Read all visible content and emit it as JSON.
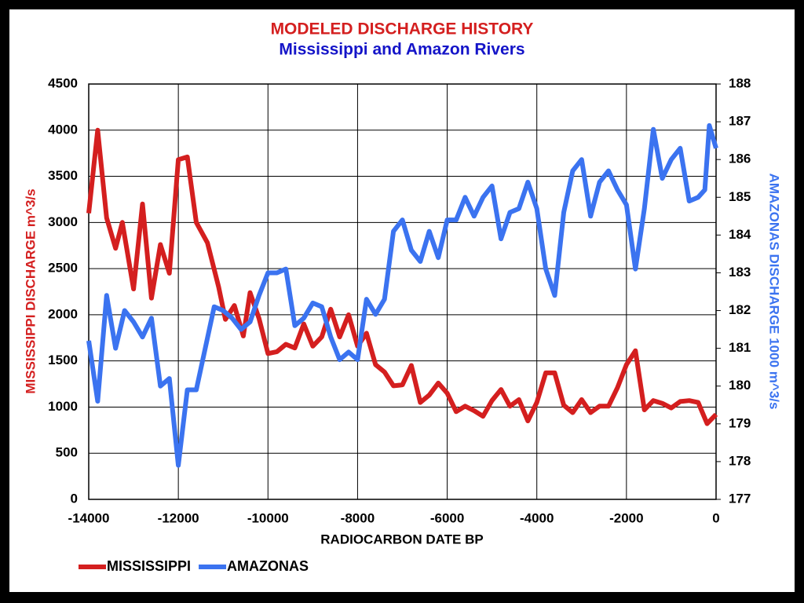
{
  "chart_data": {
    "type": "line",
    "title": "MODELED DISCHARGE HISTORY",
    "subtitle": "Mississippi and Amazon Rivers",
    "xlabel": "RADIOCARBON DATE BP",
    "ylabel": "MISSISSIPPI DISCHARGE m^3/s",
    "y2label": "AMAZONAS DISCHARGE 1000 m^3/s",
    "xlim": [
      -14000,
      0
    ],
    "xticks": [
      -14000,
      -12000,
      -10000,
      -8000,
      -6000,
      -4000,
      -2000,
      0
    ],
    "ylim": [
      0,
      4500
    ],
    "yticks": [
      0,
      500,
      1000,
      1500,
      2000,
      2500,
      3000,
      3500,
      4000,
      4500
    ],
    "y2lim": [
      177,
      188
    ],
    "y2ticks": [
      177,
      178,
      179,
      180,
      181,
      182,
      183,
      184,
      185,
      186,
      187,
      188
    ],
    "grid": true,
    "legend": "bottom-left",
    "series": [
      {
        "name": "MISSISSIPPI",
        "color": "#d41f1f",
        "x": [
          -14000,
          -13800,
          -13600,
          -13400,
          -13250,
          -13000,
          -12800,
          -12600,
          -12400,
          -12200,
          -12000,
          -11800,
          -11600,
          -11350,
          -11100,
          -10950,
          -10750,
          -10550,
          -10400,
          -10200,
          -10000,
          -9800,
          -9600,
          -9400,
          -9200,
          -9000,
          -8800,
          -8600,
          -8400,
          -8200,
          -8000,
          -7800,
          -7600,
          -7400,
          -7200,
          -7000,
          -6800,
          -6600,
          -6400,
          -6200,
          -6000,
          -5800,
          -5600,
          -5400,
          -5200,
          -5000,
          -4800,
          -4600,
          -4400,
          -4200,
          -4000,
          -3800,
          -3600,
          -3400,
          -3200,
          -3000,
          -2800,
          -2600,
          -2400,
          -2200,
          -2000,
          -1800,
          -1600,
          -1400,
          -1200,
          -1000,
          -800,
          -600,
          -400,
          -200,
          0
        ],
        "values": [
          3100,
          4000,
          3050,
          2720,
          3000,
          2280,
          3200,
          2180,
          2760,
          2450,
          3680,
          3710,
          3000,
          2780,
          2300,
          1950,
          2100,
          1770,
          2240,
          1960,
          1580,
          1600,
          1680,
          1640,
          1900,
          1660,
          1760,
          2060,
          1760,
          2000,
          1660,
          1800,
          1460,
          1380,
          1230,
          1240,
          1450,
          1050,
          1130,
          1260,
          1150,
          950,
          1010,
          960,
          900,
          1070,
          1190,
          1010,
          1080,
          850,
          1050,
          1370,
          1370,
          1020,
          940,
          1080,
          940,
          1010,
          1010,
          1210,
          1460,
          1610,
          970,
          1070,
          1040,
          990,
          1060,
          1070,
          1050,
          820,
          920
        ]
      },
      {
        "name": "AMAZONAS",
        "color": "#3b73f0",
        "axis": "y2",
        "x": [
          -14000,
          -13800,
          -13600,
          -13400,
          -13200,
          -13000,
          -12800,
          -12600,
          -12400,
          -12200,
          -12000,
          -11800,
          -11600,
          -11400,
          -11200,
          -11000,
          -10800,
          -10600,
          -10400,
          -10200,
          -10000,
          -9800,
          -9600,
          -9400,
          -9200,
          -9000,
          -8800,
          -8600,
          -8400,
          -8200,
          -8000,
          -7800,
          -7600,
          -7400,
          -7200,
          -7000,
          -6800,
          -6600,
          -6400,
          -6200,
          -6000,
          -5800,
          -5600,
          -5400,
          -5200,
          -5000,
          -4800,
          -4600,
          -4400,
          -4200,
          -4000,
          -3800,
          -3600,
          -3400,
          -3200,
          -3000,
          -2800,
          -2600,
          -2400,
          -2200,
          -2000,
          -1800,
          -1600,
          -1400,
          -1200,
          -1000,
          -800,
          -600,
          -400,
          -250,
          -150,
          0
        ],
        "values": [
          181.2,
          179.6,
          182.4,
          181.0,
          182.0,
          181.7,
          181.3,
          181.8,
          180.0,
          180.2,
          177.9,
          179.9,
          179.9,
          181.0,
          182.1,
          182.0,
          181.8,
          181.5,
          181.7,
          182.4,
          183.0,
          183.0,
          183.1,
          181.6,
          181.8,
          182.2,
          182.1,
          181.3,
          180.7,
          180.9,
          180.7,
          182.3,
          181.9,
          182.3,
          184.1,
          184.4,
          183.6,
          183.3,
          184.1,
          183.4,
          184.4,
          184.4,
          185.0,
          184.5,
          185.0,
          185.3,
          183.9,
          184.6,
          184.7,
          185.4,
          184.7,
          183.1,
          182.4,
          184.6,
          185.7,
          186.0,
          184.5,
          185.4,
          185.7,
          185.2,
          184.8,
          183.1,
          184.7,
          186.8,
          185.5,
          186.0,
          186.3,
          184.9,
          185.0,
          185.2,
          186.9,
          186.3
        ]
      }
    ]
  }
}
